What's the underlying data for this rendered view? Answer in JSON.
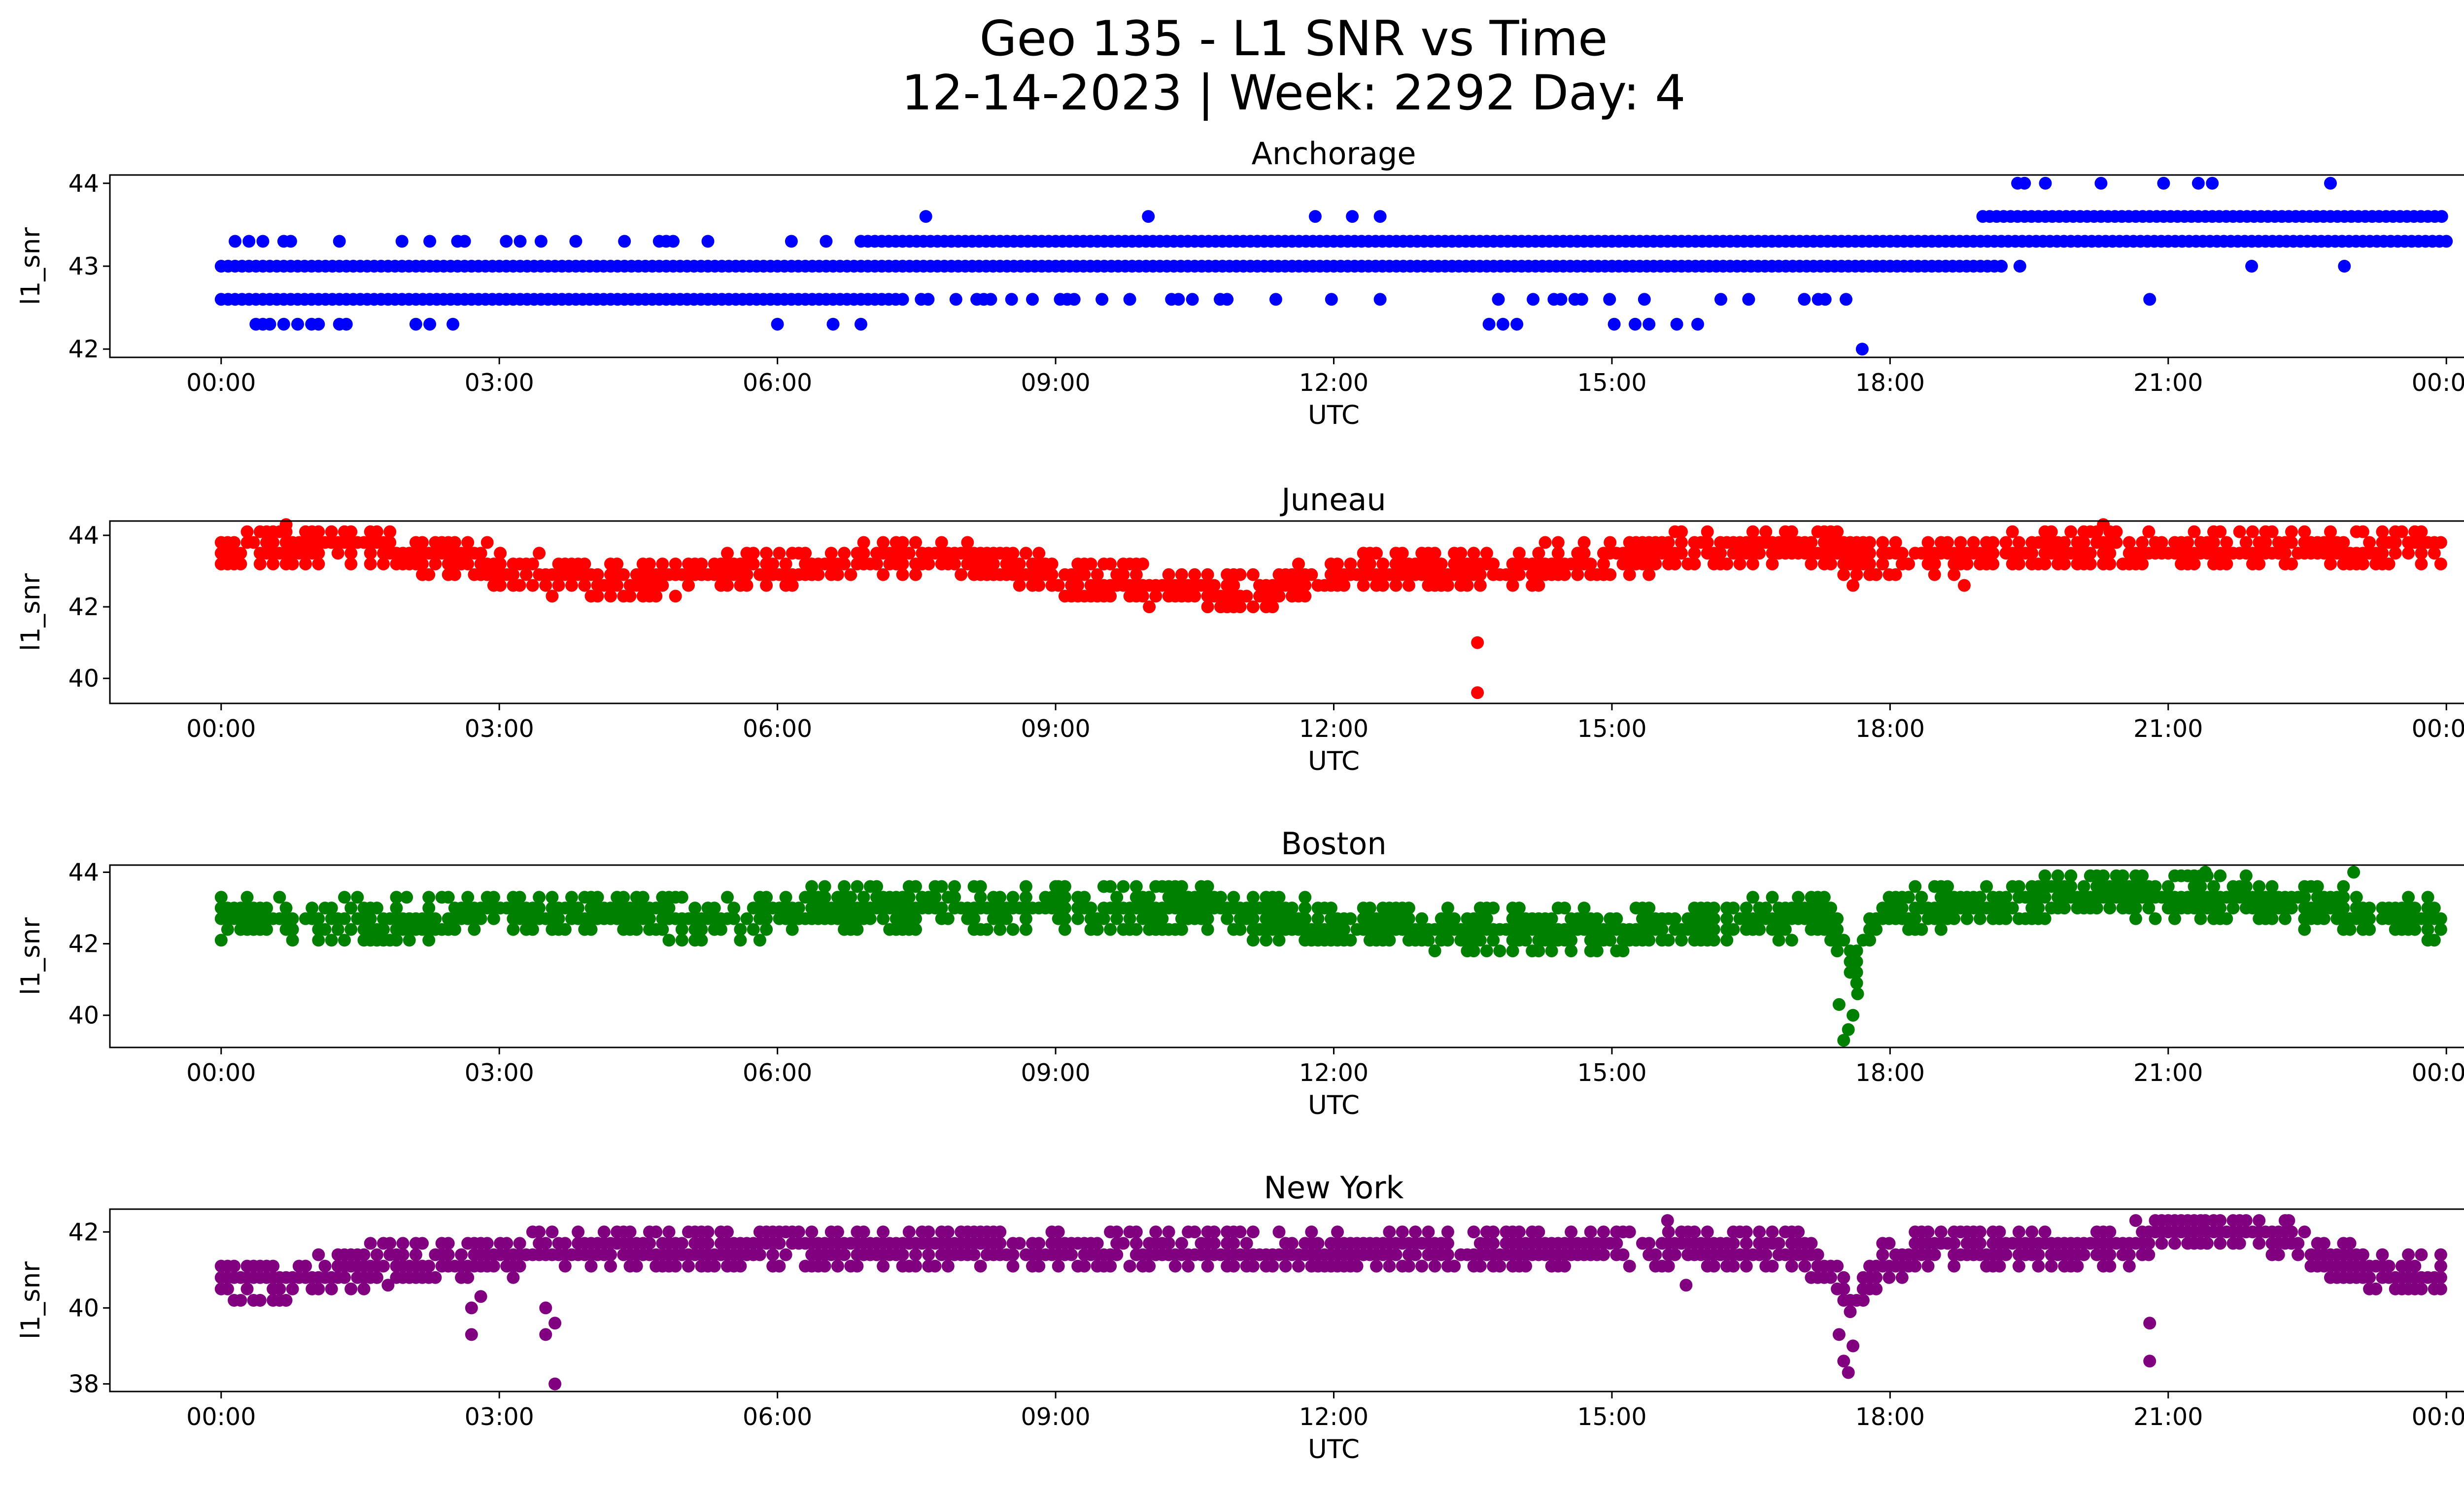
{
  "figure": {
    "title_line1": "Geo 135 - L1 SNR vs Time",
    "title_line2": "12-14-2023 | Week: 2292 Day: 4"
  },
  "chart_data": [
    {
      "type": "scatter",
      "title": "Anchorage",
      "xlabel": "UTC",
      "ylabel": "l1_snr",
      "color": "#0000ff",
      "xlim_hours": [
        -1.2,
        25.2
      ],
      "ylim": [
        41.9,
        44.1
      ],
      "xticks": [
        "00:00",
        "03:00",
        "06:00",
        "09:00",
        "12:00",
        "15:00",
        "18:00",
        "21:00",
        "00:00"
      ],
      "yticks": [
        42,
        43,
        44
      ],
      "grid": false,
      "bands": [
        {
          "from_h": 0.0,
          "to_h": 19.2,
          "y": 43.0,
          "density": 1.0
        },
        {
          "from_h": 0.0,
          "to_h": 7.4,
          "y": 42.6,
          "density": 1.0
        },
        {
          "from_h": 7.4,
          "to_h": 17.8,
          "y": 42.6,
          "density": 0.22
        },
        {
          "from_h": 0.0,
          "to_h": 6.9,
          "y": 43.3,
          "density": 0.25
        },
        {
          "from_h": 6.9,
          "to_h": 24.0,
          "y": 43.3,
          "density": 1.0
        },
        {
          "from_h": 19.0,
          "to_h": 24.0,
          "y": 43.6,
          "density": 1.0
        },
        {
          "from_h": 0.3,
          "to_h": 2.3,
          "y": 42.3,
          "density": 0.5
        },
        {
          "from_h": 13.6,
          "to_h": 16.3,
          "y": 42.3,
          "density": 0.3
        },
        {
          "from_h": 19.3,
          "to_h": 24.0,
          "y": 44.0,
          "density": 0.2
        }
      ],
      "outliers": [
        [
          17.7,
          42.0
        ],
        [
          7.6,
          43.6
        ],
        [
          10.0,
          43.6
        ],
        [
          11.8,
          43.6
        ],
        [
          12.2,
          43.6
        ],
        [
          12.5,
          43.6
        ],
        [
          6.0,
          42.3
        ],
        [
          6.6,
          42.3
        ],
        [
          6.9,
          42.3
        ],
        [
          2.5,
          42.3
        ],
        [
          20.8,
          42.6
        ],
        [
          19.4,
          43.0
        ],
        [
          21.9,
          43.0
        ],
        [
          22.9,
          43.0
        ]
      ]
    },
    {
      "type": "scatter",
      "title": "Juneau",
      "xlabel": "UTC",
      "ylabel": "l1_snr",
      "color": "#ff0000",
      "xlim_hours": [
        -1.2,
        25.2
      ],
      "ylim": [
        39.3,
        44.4
      ],
      "xticks": [
        "00:00",
        "03:00",
        "06:00",
        "09:00",
        "12:00",
        "15:00",
        "18:00",
        "21:00",
        "00:00"
      ],
      "yticks": [
        40,
        42,
        44
      ],
      "grid": false,
      "trend": [
        [
          0.0,
          43.5
        ],
        [
          0.5,
          43.7
        ],
        [
          1.5,
          43.7
        ],
        [
          2.5,
          43.4
        ],
        [
          3.5,
          42.9
        ],
        [
          4.5,
          42.7
        ],
        [
          5.5,
          43.0
        ],
        [
          6.0,
          42.9
        ],
        [
          7.0,
          43.4
        ],
        [
          8.0,
          43.4
        ],
        [
          9.0,
          42.8
        ],
        [
          10.0,
          42.6
        ],
        [
          11.0,
          42.3
        ],
        [
          12.0,
          42.9
        ],
        [
          13.5,
          43.0
        ],
        [
          15.0,
          43.4
        ],
        [
          16.5,
          43.7
        ],
        [
          18.0,
          43.4
        ],
        [
          20.0,
          43.6
        ],
        [
          22.0,
          43.5
        ],
        [
          24.0,
          43.8
        ]
      ],
      "spread": 0.6,
      "outliers": [
        [
          13.55,
          41.0
        ],
        [
          13.55,
          39.6
        ],
        [
          0.7,
          44.3
        ],
        [
          20.3,
          44.3
        ],
        [
          17.6,
          42.6
        ],
        [
          18.8,
          42.6
        ]
      ]
    },
    {
      "type": "scatter",
      "title": "Boston",
      "xlabel": "UTC",
      "ylabel": "l1_snr",
      "color": "#008000",
      "xlim_hours": [
        -1.2,
        25.2
      ],
      "ylim": [
        39.1,
        44.2
      ],
      "xticks": [
        "00:00",
        "03:00",
        "06:00",
        "09:00",
        "12:00",
        "15:00",
        "18:00",
        "21:00",
        "00:00"
      ],
      "yticks": [
        40,
        42,
        44
      ],
      "grid": false,
      "trend": [
        [
          0.0,
          42.6
        ],
        [
          2.0,
          42.6
        ],
        [
          2.5,
          42.9
        ],
        [
          4.0,
          42.9
        ],
        [
          5.5,
          42.6
        ],
        [
          6.0,
          42.9
        ],
        [
          7.0,
          43.0
        ],
        [
          9.0,
          43.1
        ],
        [
          10.5,
          43.0
        ],
        [
          12.0,
          42.5
        ],
        [
          14.0,
          42.4
        ],
        [
          16.5,
          42.6
        ],
        [
          17.2,
          42.9
        ],
        [
          17.5,
          42.0
        ],
        [
          17.6,
          41.0
        ],
        [
          17.8,
          42.8
        ],
        [
          18.5,
          43.0
        ],
        [
          20.0,
          43.3
        ],
        [
          21.0,
          43.3
        ],
        [
          22.0,
          43.2
        ],
        [
          23.0,
          42.9
        ],
        [
          24.0,
          42.7
        ]
      ],
      "spread": 0.7,
      "outliers": [
        [
          17.5,
          39.3
        ],
        [
          17.55,
          39.6
        ],
        [
          17.6,
          40.0
        ],
        [
          17.65,
          40.6
        ],
        [
          17.45,
          40.3
        ],
        [
          21.4,
          44.0
        ],
        [
          23.0,
          44.0
        ],
        [
          9.0,
          43.6
        ],
        [
          2.0,
          43.3
        ]
      ]
    },
    {
      "type": "scatter",
      "title": "New York",
      "xlabel": "UTC",
      "ylabel": "l1_snr",
      "color": "#800080",
      "xlim_hours": [
        -1.2,
        25.2
      ],
      "ylim": [
        37.8,
        42.6
      ],
      "xticks": [
        "00:00",
        "03:00",
        "06:00",
        "09:00",
        "12:00",
        "15:00",
        "18:00",
        "21:00",
        "00:00"
      ],
      "yticks": [
        38,
        40,
        42
      ],
      "grid": false,
      "trend": [
        [
          0.0,
          40.8
        ],
        [
          1.0,
          40.8
        ],
        [
          1.8,
          41.2
        ],
        [
          2.5,
          41.2
        ],
        [
          3.5,
          41.5
        ],
        [
          5.0,
          41.5
        ],
        [
          6.0,
          41.6
        ],
        [
          9.0,
          41.6
        ],
        [
          12.0,
          41.4
        ],
        [
          15.0,
          41.6
        ],
        [
          16.0,
          41.6
        ],
        [
          17.0,
          41.5
        ],
        [
          17.4,
          40.8
        ],
        [
          17.6,
          40.0
        ],
        [
          17.8,
          41.0
        ],
        [
          18.5,
          41.6
        ],
        [
          20.5,
          41.6
        ],
        [
          21.0,
          42.0
        ],
        [
          22.0,
          42.0
        ],
        [
          22.6,
          41.4
        ],
        [
          23.2,
          41.0
        ],
        [
          24.0,
          40.8
        ]
      ],
      "spread": 0.6,
      "outliers": [
        [
          2.7,
          39.3
        ],
        [
          2.7,
          40.0
        ],
        [
          2.8,
          40.3
        ],
        [
          3.6,
          38.0
        ],
        [
          3.5,
          39.3
        ],
        [
          3.6,
          39.6
        ],
        [
          3.5,
          40.0
        ],
        [
          17.55,
          38.3
        ],
        [
          17.5,
          38.6
        ],
        [
          17.6,
          39.0
        ],
        [
          17.45,
          39.3
        ],
        [
          20.8,
          38.6
        ],
        [
          20.8,
          39.6
        ],
        [
          15.8,
          40.6
        ],
        [
          1.8,
          40.6
        ],
        [
          15.6,
          42.3
        ],
        [
          21.4,
          42.3
        ],
        [
          22.3,
          42.3
        ]
      ]
    }
  ]
}
